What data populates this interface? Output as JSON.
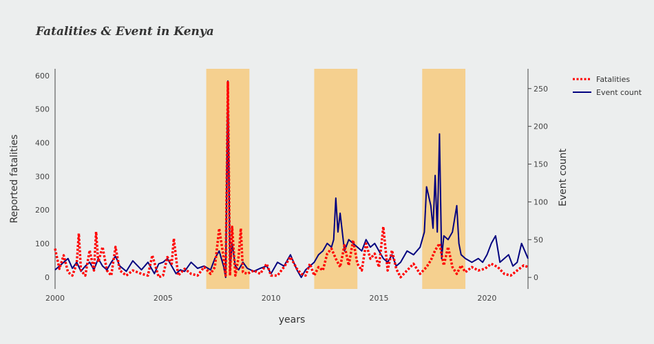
{
  "chart_data": {
    "type": "line",
    "title": "Fatalities & Event in Kenya",
    "xlabel": "years",
    "ylabel_left": "Reported fatalities",
    "ylabel_right": "Event count",
    "xlim": [
      2000,
      2021.9
    ],
    "ylim_left": [
      -35,
      620
    ],
    "ylim_right": [
      -15.3,
      276.2
    ],
    "x_ticks": [
      2000,
      2005,
      2010,
      2015,
      2020
    ],
    "y_left_ticks": [
      0,
      100,
      200,
      300,
      400,
      500,
      600
    ],
    "y_right_ticks": [
      0,
      50,
      100,
      150,
      200,
      250
    ],
    "highlight_bands": [
      [
        2007,
        2009
      ],
      [
        2012,
        2014
      ],
      [
        2017,
        2019
      ]
    ],
    "band_color": "#f5d08f",
    "legend": [
      "Fatalities",
      "Event count"
    ],
    "series": [
      {
        "name": "Fatalities",
        "axis": "left",
        "color": "#ff0000",
        "style": "dotted",
        "x": [
          2000.0,
          2000.2,
          2000.4,
          2000.6,
          2000.8,
          2001.0,
          2001.1,
          2001.2,
          2001.4,
          2001.6,
          2001.8,
          2001.9,
          2002.0,
          2002.2,
          2002.4,
          2002.6,
          2002.8,
          2003.0,
          2003.3,
          2003.6,
          2004.0,
          2004.3,
          2004.5,
          2004.8,
          2005.0,
          2005.2,
          2005.4,
          2005.5,
          2005.7,
          2006.0,
          2006.3,
          2006.6,
          2006.9,
          2007.2,
          2007.4,
          2007.6,
          2007.8,
          2007.9,
          2008.0,
          2008.1,
          2008.2,
          2008.35,
          2008.5,
          2008.6,
          2008.7,
          2008.9,
          2009.2,
          2009.5,
          2009.8,
          2010.0,
          2010.3,
          2010.6,
          2010.9,
          2011.2,
          2011.4,
          2011.6,
          2011.8,
          2012.0,
          2012.2,
          2012.4,
          2012.6,
          2012.8,
          2013.0,
          2013.2,
          2013.4,
          2013.6,
          2013.8,
          2014.0,
          2014.2,
          2014.4,
          2014.6,
          2014.8,
          2015.0,
          2015.2,
          2015.4,
          2015.6,
          2015.8,
          2016.0,
          2016.3,
          2016.6,
          2016.9,
          2017.2,
          2017.4,
          2017.6,
          2017.8,
          2018.0,
          2018.2,
          2018.4,
          2018.6,
          2018.8,
          2019.0,
          2019.3,
          2019.6,
          2019.9,
          2020.2,
          2020.5,
          2020.8,
          2021.1,
          2021.4,
          2021.7,
          2021.9
        ],
        "values": [
          85,
          25,
          65,
          15,
          5,
          40,
          130,
          20,
          5,
          80,
          20,
          135,
          45,
          90,
          20,
          5,
          90,
          20,
          5,
          20,
          10,
          5,
          65,
          0,
          5,
          60,
          40,
          115,
          5,
          25,
          10,
          5,
          30,
          10,
          30,
          145,
          60,
          5,
          580,
          5,
          150,
          5,
          60,
          145,
          15,
          10,
          20,
          10,
          40,
          5,
          5,
          30,
          60,
          25,
          10,
          5,
          40,
          5,
          30,
          20,
          70,
          85,
          55,
          30,
          95,
          35,
          110,
          40,
          20,
          100,
          55,
          70,
          30,
          150,
          20,
          80,
          25,
          0,
          20,
          40,
          10,
          30,
          50,
          80,
          100,
          35,
          90,
          30,
          10,
          35,
          15,
          30,
          20,
          25,
          40,
          30,
          10,
          5,
          20,
          35,
          30
        ]
      },
      {
        "name": "Event count",
        "axis": "right",
        "color": "#00007f",
        "style": "solid",
        "x": [
          2000.0,
          2000.2,
          2000.4,
          2000.6,
          2000.8,
          2001.0,
          2001.2,
          2001.4,
          2001.6,
          2001.8,
          2002.0,
          2002.2,
          2002.4,
          2002.6,
          2002.8,
          2003.0,
          2003.3,
          2003.6,
          2004.0,
          2004.3,
          2004.6,
          2004.8,
          2005.0,
          2005.2,
          2005.4,
          2005.6,
          2005.8,
          2006.0,
          2006.3,
          2006.6,
          2006.9,
          2007.2,
          2007.4,
          2007.6,
          2007.8,
          2007.9,
          2008.0,
          2008.1,
          2008.2,
          2008.35,
          2008.5,
          2008.7,
          2008.9,
          2009.2,
          2009.5,
          2009.8,
          2010.0,
          2010.3,
          2010.6,
          2010.9,
          2011.2,
          2011.4,
          2011.6,
          2011.8,
          2012.0,
          2012.2,
          2012.4,
          2012.6,
          2012.8,
          2012.9,
          2013.0,
          2013.1,
          2013.2,
          2013.4,
          2013.6,
          2013.8,
          2014.0,
          2014.2,
          2014.4,
          2014.6,
          2014.8,
          2015.0,
          2015.2,
          2015.4,
          2015.6,
          2015.8,
          2016.0,
          2016.3,
          2016.6,
          2016.9,
          2017.1,
          2017.2,
          2017.4,
          2017.5,
          2017.6,
          2017.7,
          2017.8,
          2017.9,
          2018.0,
          2018.2,
          2018.4,
          2018.6,
          2018.7,
          2018.8,
          2019.0,
          2019.3,
          2019.6,
          2019.8,
          2020.0,
          2020.2,
          2020.4,
          2020.6,
          2020.8,
          2021.0,
          2021.2,
          2021.4,
          2021.6,
          2021.9
        ],
        "values": [
          10,
          15,
          20,
          25,
          12,
          20,
          8,
          15,
          20,
          10,
          25,
          15,
          10,
          20,
          28,
          15,
          8,
          22,
          10,
          20,
          5,
          18,
          20,
          25,
          15,
          5,
          10,
          8,
          20,
          12,
          15,
          10,
          25,
          35,
          15,
          0,
          260,
          10,
          45,
          15,
          10,
          20,
          12,
          8,
          12,
          15,
          5,
          20,
          15,
          30,
          10,
          0,
          10,
          15,
          20,
          30,
          35,
          45,
          40,
          50,
          105,
          60,
          85,
          35,
          50,
          45,
          40,
          35,
          50,
          40,
          45,
          35,
          25,
          20,
          30,
          15,
          20,
          35,
          30,
          40,
          60,
          120,
          95,
          65,
          135,
          60,
          190,
          25,
          55,
          50,
          60,
          95,
          45,
          30,
          25,
          20,
          25,
          20,
          30,
          45,
          55,
          20,
          25,
          30,
          15,
          20,
          45,
          25
        ]
      }
    ]
  }
}
